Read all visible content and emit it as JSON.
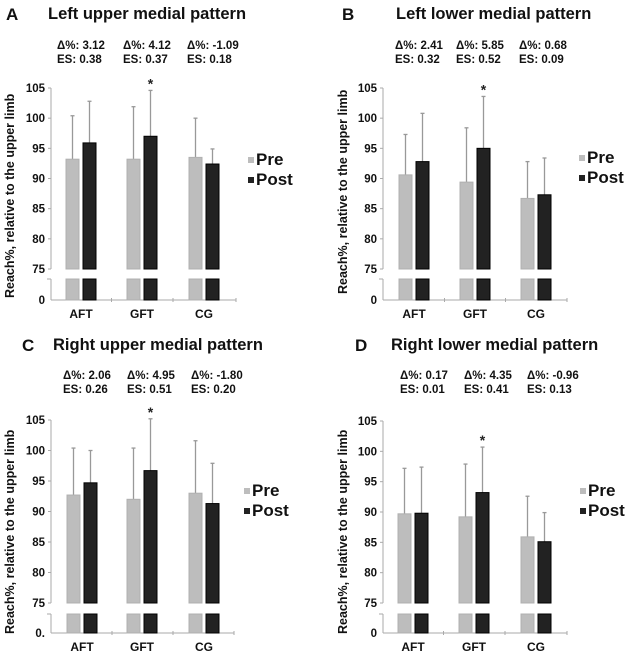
{
  "chart_data": [
    {
      "type": "bar",
      "panel": "A",
      "title": "Left upper medial pattern",
      "xlabel": "",
      "ylabel": "Reach%, relative to the upper limb",
      "yticks": [
        "0",
        "75",
        "80",
        "85",
        "90",
        "95",
        "100",
        "105"
      ],
      "ylim": [
        75,
        105
      ],
      "axis_break": "between 0 and 75",
      "categories": [
        "AFT",
        "GFT",
        "CG"
      ],
      "series": [
        {
          "name": "Pre",
          "color": "#bdbdbd",
          "values": [
            93.2,
            93.2,
            93.5
          ],
          "error_upper": [
            100.4,
            101.9,
            100.0
          ]
        },
        {
          "name": "Post",
          "color": "#222222",
          "values": [
            95.9,
            97.0,
            92.4
          ],
          "error_upper": [
            102.8,
            104.6,
            94.9
          ]
        }
      ],
      "annotations": [
        {
          "category": "AFT",
          "delta": "Δ%: 3.12",
          "es": "ES: 0.38",
          "significant": false
        },
        {
          "category": "GFT",
          "delta": "Δ%: 4.12",
          "es": "ES: 0.37",
          "significant": true
        },
        {
          "category": "CG",
          "delta": "Δ%: -1.09",
          "es": "ES: 0.18",
          "significant": false
        }
      ],
      "significance_marker": "*",
      "legend": "right"
    },
    {
      "type": "bar",
      "panel": "B",
      "title": "Left lower medial pattern",
      "xlabel": "",
      "ylabel": "Reach%, relative to the upper limb",
      "yticks": [
        "0",
        "75",
        "80",
        "85",
        "90",
        "95",
        "100",
        "105"
      ],
      "ylim": [
        75,
        105
      ],
      "axis_break": "between 0 and 75",
      "categories": [
        "AFT",
        "GFT",
        "CG"
      ],
      "series": [
        {
          "name": "Pre",
          "color": "#bdbdbd",
          "values": [
            90.6,
            89.4,
            86.7
          ],
          "error_upper": [
            97.3,
            98.4,
            92.8
          ]
        },
        {
          "name": "Post",
          "color": "#222222",
          "values": [
            92.8,
            95.0,
            87.3
          ],
          "error_upper": [
            100.8,
            103.6,
            93.4
          ]
        }
      ],
      "annotations": [
        {
          "category": "AFT",
          "delta": "Δ%: 2.41",
          "es": "ES: 0.32",
          "significant": false
        },
        {
          "category": "GFT",
          "delta": "Δ%: 5.85",
          "es": "ES: 0.52",
          "significant": true
        },
        {
          "category": "CG",
          "delta": "Δ%: 0.68",
          "es": "ES: 0.09",
          "significant": false
        }
      ],
      "significance_marker": "*",
      "legend": "right"
    },
    {
      "type": "bar",
      "panel": "C",
      "title": "Right upper medial pattern",
      "xlabel": "",
      "ylabel": "Reach%, relative to the upper limb",
      "yticks": [
        "0.",
        "75",
        "80",
        "85",
        "90",
        "95",
        "100",
        "105"
      ],
      "ylim": [
        75,
        105
      ],
      "axis_break": "between 0 and 75",
      "categories": [
        "AFT",
        "GFT",
        "CG"
      ],
      "series": [
        {
          "name": "Pre",
          "color": "#bdbdbd",
          "values": [
            92.7,
            92.0,
            93.0
          ],
          "error_upper": [
            100.4,
            100.4,
            101.6
          ]
        },
        {
          "name": "Post",
          "color": "#222222",
          "values": [
            94.7,
            96.7,
            91.3
          ],
          "error_upper": [
            100.0,
            105.2,
            97.9
          ]
        }
      ],
      "annotations": [
        {
          "category": "AFT",
          "delta": "Δ%: 2.06",
          "es": "ES: 0.26",
          "significant": false
        },
        {
          "category": "GFT",
          "delta": "Δ%: 4.95",
          "es": "ES: 0.51",
          "significant": true
        },
        {
          "category": "CG",
          "delta": "Δ%: -1.80",
          "es": "ES: 0.20",
          "significant": false
        }
      ],
      "significance_marker": "*",
      "legend": "right"
    },
    {
      "type": "bar",
      "panel": "D",
      "title": "Right lower medial pattern",
      "xlabel": "",
      "ylabel": "Reach%, relative to the upper limb",
      "yticks": [
        "0",
        "75",
        "80",
        "85",
        "90",
        "95",
        "100",
        "105"
      ],
      "ylim": [
        75,
        105
      ],
      "axis_break": "between 0 and 75",
      "categories": [
        "AFT",
        "GFT",
        "CG"
      ],
      "series": [
        {
          "name": "Pre",
          "color": "#bdbdbd",
          "values": [
            89.7,
            89.2,
            85.9
          ],
          "error_upper": [
            97.2,
            97.9,
            92.6
          ]
        },
        {
          "name": "Post",
          "color": "#222222",
          "values": [
            89.8,
            93.2,
            85.1
          ],
          "error_upper": [
            97.4,
            100.7,
            89.9
          ]
        }
      ],
      "annotations": [
        {
          "category": "AFT",
          "delta": "Δ%: 0.17",
          "es": "ES: 0.01",
          "significant": false
        },
        {
          "category": "GFT",
          "delta": "Δ%: 4.35",
          "es": "ES: 0.41",
          "significant": true
        },
        {
          "category": "CG",
          "delta": "Δ%: -0.96",
          "es": "ES: 0.13",
          "significant": false
        }
      ],
      "significance_marker": "*",
      "legend": "right"
    }
  ],
  "panels": [
    {
      "letter": "A",
      "title": "Left upper medial pattern"
    },
    {
      "letter": "B",
      "title": "Left lower medial pattern"
    },
    {
      "letter": "C",
      "title": "Right upper medial pattern"
    },
    {
      "letter": "D",
      "title": "Right lower medial pattern"
    }
  ],
  "colors": {
    "pre": "#bdbdbd",
    "post": "#222222",
    "axis": "#aaaaaa",
    "error_bar": "#999999"
  }
}
